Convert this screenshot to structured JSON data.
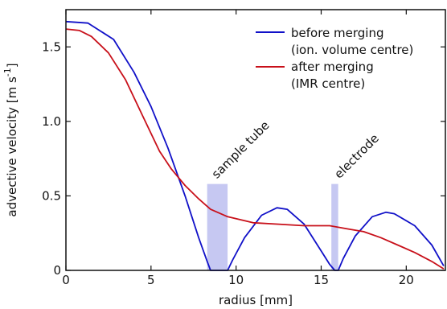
{
  "chart_data": {
    "type": "line",
    "xlabel": "radius [mm]",
    "ylabel_main": "advective velocity [m s",
    "ylabel_sup": "-1",
    "ylabel_close": "]",
    "xlim": [
      0,
      22.3
    ],
    "ylim": [
      0,
      1.75
    ],
    "xticks": [
      0,
      5,
      10,
      15,
      20
    ],
    "yticks": [
      0,
      0.5,
      1.0,
      1.5
    ],
    "xtick_labels": [
      "0",
      "5",
      "10",
      "15",
      "20"
    ],
    "ytick_labels": [
      "0",
      "0.5",
      "1.0",
      "1.5"
    ],
    "grid": false,
    "legend_position": "top-right",
    "series": [
      {
        "name_line1": "before merging",
        "name_line2": "(ion. volume centre)",
        "color": "#1010c8",
        "x": [
          0,
          1.3,
          2.8,
          4.0,
          5.0,
          6.0,
          7.0,
          7.8,
          8.3,
          8.5,
          9.5,
          9.8,
          10.5,
          11.5,
          12.4,
          13.0,
          14.0,
          15.0,
          15.5,
          15.8,
          16.0,
          16.3,
          17.0,
          18.0,
          18.8,
          19.3,
          20.5,
          21.5,
          22.2
        ],
        "y": [
          1.67,
          1.66,
          1.55,
          1.33,
          1.1,
          0.82,
          0.5,
          0.22,
          0.06,
          0.0,
          0.0,
          0.07,
          0.22,
          0.37,
          0.42,
          0.41,
          0.31,
          0.13,
          0.04,
          0.0,
          0.0,
          0.08,
          0.23,
          0.36,
          0.39,
          0.38,
          0.3,
          0.17,
          0.03
        ]
      },
      {
        "name_line1": "after merging",
        "name_line2": "(IMR centre)",
        "color": "#c8101a",
        "x": [
          0,
          0.8,
          1.5,
          2.5,
          3.5,
          4.5,
          5.5,
          6.2,
          7.0,
          7.8,
          8.5,
          9.5,
          11.0,
          12.5,
          14.0,
          15.5,
          16.5,
          17.5,
          18.5,
          19.5,
          20.5,
          21.5,
          22.2
        ],
        "y": [
          1.62,
          1.61,
          1.57,
          1.46,
          1.28,
          1.04,
          0.8,
          0.68,
          0.57,
          0.48,
          0.41,
          0.36,
          0.32,
          0.31,
          0.3,
          0.3,
          0.28,
          0.26,
          0.22,
          0.17,
          0.12,
          0.06,
          0.01
        ]
      }
    ],
    "regions": [
      {
        "label": "sample tube",
        "x0": 8.3,
        "x1": 9.5,
        "y0": 0,
        "y1": 0.58,
        "color": "#c6c8f2"
      },
      {
        "label": "electrode",
        "x0": 15.6,
        "x1": 16.0,
        "y0": 0,
        "y1": 0.58,
        "color": "#c6c8f2"
      }
    ]
  }
}
